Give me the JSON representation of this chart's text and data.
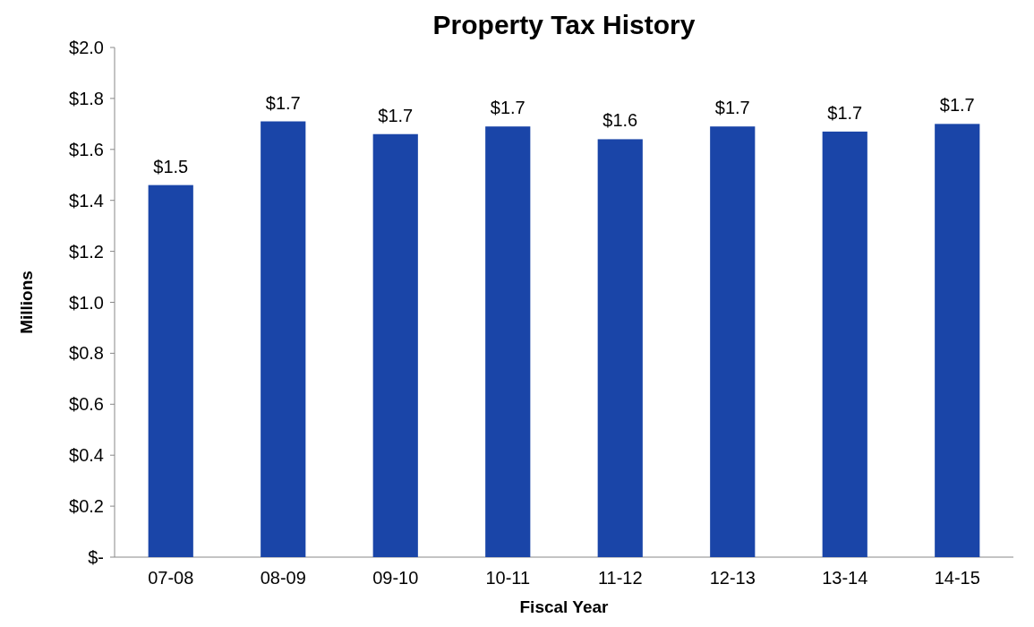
{
  "chart_data": {
    "type": "bar",
    "title": "Property Tax History",
    "xlabel": "Fiscal Year",
    "ylabel": "Millions",
    "categories": [
      "07-08",
      "08-09",
      "09-10",
      "10-11",
      "11-12",
      "12-13",
      "13-14",
      "14-15"
    ],
    "values": [
      1.46,
      1.71,
      1.66,
      1.69,
      1.64,
      1.69,
      1.67,
      1.7
    ],
    "value_labels": [
      "$1.5",
      "$1.7",
      "$1.7",
      "$1.7",
      "$1.6",
      "$1.7",
      "$1.7",
      "$1.7"
    ],
    "color": "#1a45a8",
    "ylim": [
      0,
      2.0
    ],
    "yticks": [
      {
        "value": 0,
        "label": "$-"
      },
      {
        "value": 0.2,
        "label": "$0.2"
      },
      {
        "value": 0.4,
        "label": "$0.4"
      },
      {
        "value": 0.6,
        "label": "$0.6"
      },
      {
        "value": 0.8,
        "label": "$0.8"
      },
      {
        "value": 1.0,
        "label": "$1.0"
      },
      {
        "value": 1.2,
        "label": "$1.2"
      },
      {
        "value": 1.4,
        "label": "$1.4"
      },
      {
        "value": 1.6,
        "label": "$1.6"
      },
      {
        "value": 1.8,
        "label": "$1.8"
      },
      {
        "value": 2.0,
        "label": "$2.0"
      }
    ]
  }
}
